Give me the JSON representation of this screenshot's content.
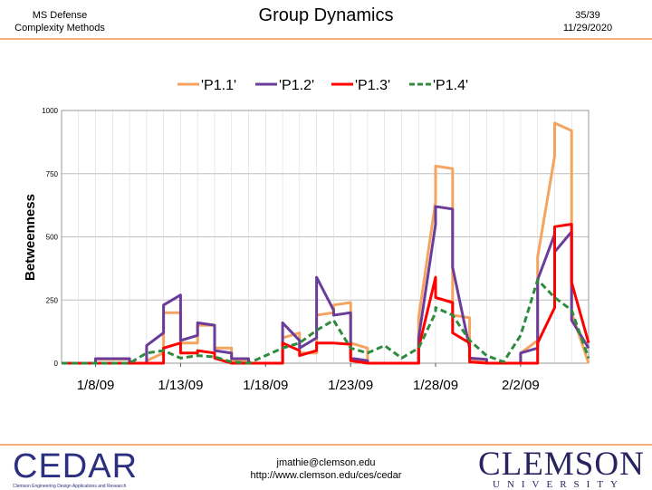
{
  "header": {
    "left_line1": "MS Defense",
    "left_line2": "Complexity Methods",
    "title": "Group Dynamics",
    "right_line1": "35/39",
    "right_line2": "11/29/2020"
  },
  "footer": {
    "email": "jmathie@clemson.edu",
    "url": "http://www.clemson.edu/ces/cedar",
    "cedar_logo": "CEDAR",
    "cedar_tagline": "Clemson Engineering Design Applications and Research",
    "clemson_logo": "CLEMSON",
    "clemson_sub": "UNIVERSITY"
  },
  "colors": {
    "accent_rule": "#f0b27a",
    "P1.1": "#f4a460",
    "P1.2": "#6a3d9a",
    "P1.3": "#ff0000",
    "P1.4": "#2e8b3e"
  },
  "chart_data": {
    "type": "line",
    "title": "",
    "xlabel": "",
    "ylabel": "Betweenness",
    "ylim": [
      0,
      1000
    ],
    "yticks": [
      0,
      250,
      500,
      750,
      1000
    ],
    "xlim": [
      "2009-01-06",
      "2009-02-06"
    ],
    "xtick_labels": [
      "1/8/09",
      "1/13/09",
      "1/18/09",
      "1/23/09",
      "1/28/09",
      "2/2/09"
    ],
    "grid": true,
    "legend": "top-center",
    "series": [
      {
        "name": "'P1.1'",
        "color": "#f4a460",
        "style": "solid",
        "points": [
          [
            "2009-01-06",
            0
          ],
          [
            "2009-01-08",
            0
          ],
          [
            "2009-01-08",
            15
          ],
          [
            "2009-01-10",
            15
          ],
          [
            "2009-01-10",
            0
          ],
          [
            "2009-01-11",
            0
          ],
          [
            "2009-01-11",
            10
          ],
          [
            "2009-01-12",
            40
          ],
          [
            "2009-01-12",
            200
          ],
          [
            "2009-01-13",
            200
          ],
          [
            "2009-01-13",
            80
          ],
          [
            "2009-01-14",
            80
          ],
          [
            "2009-01-14",
            150
          ],
          [
            "2009-01-15",
            150
          ],
          [
            "2009-01-15",
            60
          ],
          [
            "2009-01-16",
            60
          ],
          [
            "2009-01-16",
            10
          ],
          [
            "2009-01-17",
            10
          ],
          [
            "2009-01-17",
            0
          ],
          [
            "2009-01-19",
            0
          ],
          [
            "2009-01-19",
            100
          ],
          [
            "2009-01-20",
            120
          ],
          [
            "2009-01-20",
            40
          ],
          [
            "2009-01-21",
            40
          ],
          [
            "2009-01-21",
            190
          ],
          [
            "2009-01-22",
            200
          ],
          [
            "2009-01-22",
            230
          ],
          [
            "2009-01-23",
            240
          ],
          [
            "2009-01-23",
            80
          ],
          [
            "2009-01-24",
            60
          ],
          [
            "2009-01-24",
            0
          ],
          [
            "2009-01-27",
            0
          ],
          [
            "2009-01-27",
            180
          ],
          [
            "2009-01-28",
            640
          ],
          [
            "2009-01-28",
            780
          ],
          [
            "2009-01-29",
            770
          ],
          [
            "2009-01-29",
            190
          ],
          [
            "2009-01-30",
            180
          ],
          [
            "2009-01-30",
            15
          ],
          [
            "2009-01-31",
            10
          ],
          [
            "2009-01-31",
            0
          ],
          [
            "2009-02-02",
            0
          ],
          [
            "2009-02-02",
            40
          ],
          [
            "2009-02-03",
            90
          ],
          [
            "2009-02-03",
            420
          ],
          [
            "2009-02-04",
            820
          ],
          [
            "2009-02-04",
            950
          ],
          [
            "2009-02-05",
            920
          ],
          [
            "2009-02-05",
            200
          ],
          [
            "2009-02-06",
            0
          ]
        ]
      },
      {
        "name": "'P1.2'",
        "color": "#6a3d9a",
        "style": "solid",
        "points": [
          [
            "2009-01-06",
            0
          ],
          [
            "2009-01-08",
            0
          ],
          [
            "2009-01-08",
            18
          ],
          [
            "2009-01-10",
            18
          ],
          [
            "2009-01-10",
            0
          ],
          [
            "2009-01-11",
            0
          ],
          [
            "2009-01-11",
            70
          ],
          [
            "2009-01-12",
            120
          ],
          [
            "2009-01-12",
            230
          ],
          [
            "2009-01-13",
            270
          ],
          [
            "2009-01-13",
            90
          ],
          [
            "2009-01-14",
            110
          ],
          [
            "2009-01-14",
            160
          ],
          [
            "2009-01-15",
            150
          ],
          [
            "2009-01-15",
            50
          ],
          [
            "2009-01-16",
            40
          ],
          [
            "2009-01-16",
            18
          ],
          [
            "2009-01-17",
            18
          ],
          [
            "2009-01-17",
            0
          ],
          [
            "2009-01-19",
            0
          ],
          [
            "2009-01-19",
            160
          ],
          [
            "2009-01-20",
            90
          ],
          [
            "2009-01-20",
            60
          ],
          [
            "2009-01-21",
            100
          ],
          [
            "2009-01-21",
            340
          ],
          [
            "2009-01-22",
            210
          ],
          [
            "2009-01-22",
            190
          ],
          [
            "2009-01-23",
            200
          ],
          [
            "2009-01-23",
            20
          ],
          [
            "2009-01-24",
            10
          ],
          [
            "2009-01-24",
            0
          ],
          [
            "2009-01-27",
            0
          ],
          [
            "2009-01-27",
            100
          ],
          [
            "2009-01-28",
            550
          ],
          [
            "2009-01-28",
            620
          ],
          [
            "2009-01-29",
            610
          ],
          [
            "2009-01-29",
            380
          ],
          [
            "2009-01-30",
            60
          ],
          [
            "2009-01-30",
            20
          ],
          [
            "2009-01-31",
            15
          ],
          [
            "2009-01-31",
            0
          ],
          [
            "2009-02-02",
            0
          ],
          [
            "2009-02-02",
            40
          ],
          [
            "2009-02-03",
            60
          ],
          [
            "2009-02-03",
            330
          ],
          [
            "2009-02-04",
            510
          ],
          [
            "2009-02-04",
            440
          ],
          [
            "2009-02-05",
            520
          ],
          [
            "2009-02-05",
            170
          ],
          [
            "2009-02-06",
            60
          ]
        ]
      },
      {
        "name": "'P1.3'",
        "color": "#ff0000",
        "style": "solid",
        "points": [
          [
            "2009-01-06",
            0
          ],
          [
            "2009-01-12",
            0
          ],
          [
            "2009-01-12",
            60
          ],
          [
            "2009-01-13",
            80
          ],
          [
            "2009-01-13",
            40
          ],
          [
            "2009-01-14",
            40
          ],
          [
            "2009-01-14",
            50
          ],
          [
            "2009-01-15",
            40
          ],
          [
            "2009-01-15",
            20
          ],
          [
            "2009-01-16",
            0
          ],
          [
            "2009-01-19",
            0
          ],
          [
            "2009-01-19",
            80
          ],
          [
            "2009-01-20",
            50
          ],
          [
            "2009-01-20",
            30
          ],
          [
            "2009-01-21",
            50
          ],
          [
            "2009-01-21",
            80
          ],
          [
            "2009-01-22",
            80
          ],
          [
            "2009-01-22",
            80
          ],
          [
            "2009-01-23",
            75
          ],
          [
            "2009-01-23",
            10
          ],
          [
            "2009-01-24",
            0
          ],
          [
            "2009-01-27",
            0
          ],
          [
            "2009-01-27",
            60
          ],
          [
            "2009-01-28",
            340
          ],
          [
            "2009-01-28",
            260
          ],
          [
            "2009-01-29",
            240
          ],
          [
            "2009-01-29",
            120
          ],
          [
            "2009-01-30",
            80
          ],
          [
            "2009-01-30",
            5
          ],
          [
            "2009-01-31",
            0
          ],
          [
            "2009-02-03",
            0
          ],
          [
            "2009-02-03",
            80
          ],
          [
            "2009-02-04",
            220
          ],
          [
            "2009-02-04",
            540
          ],
          [
            "2009-02-05",
            550
          ],
          [
            "2009-02-05",
            320
          ],
          [
            "2009-02-06",
            80
          ]
        ]
      },
      {
        "name": "'P1.4'",
        "color": "#2e8b3e",
        "style": "dashed",
        "points": [
          [
            "2009-01-06",
            0
          ],
          [
            "2009-01-10",
            0
          ],
          [
            "2009-01-11",
            40
          ],
          [
            "2009-01-12",
            50
          ],
          [
            "2009-01-13",
            20
          ],
          [
            "2009-01-14",
            30
          ],
          [
            "2009-01-15",
            25
          ],
          [
            "2009-01-16",
            5
          ],
          [
            "2009-01-17",
            0
          ],
          [
            "2009-01-19",
            60
          ],
          [
            "2009-01-20",
            80
          ],
          [
            "2009-01-21",
            130
          ],
          [
            "2009-01-22",
            170
          ],
          [
            "2009-01-23",
            60
          ],
          [
            "2009-01-24",
            40
          ],
          [
            "2009-01-25",
            70
          ],
          [
            "2009-01-26",
            20
          ],
          [
            "2009-01-27",
            60
          ],
          [
            "2009-01-28",
            200
          ],
          [
            "2009-01-28",
            220
          ],
          [
            "2009-01-29",
            190
          ],
          [
            "2009-01-30",
            90
          ],
          [
            "2009-01-31",
            30
          ],
          [
            "2009-02-01",
            5
          ],
          [
            "2009-02-02",
            110
          ],
          [
            "2009-02-03",
            330
          ],
          [
            "2009-02-04",
            260
          ],
          [
            "2009-02-05",
            210
          ],
          [
            "2009-02-06",
            20
          ]
        ]
      }
    ]
  }
}
